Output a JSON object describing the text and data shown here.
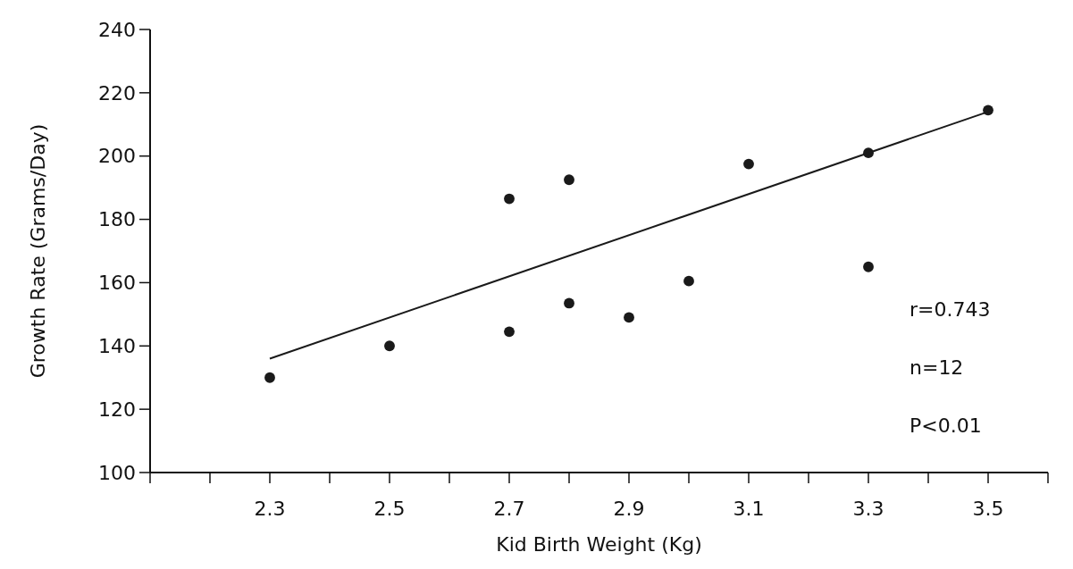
{
  "chart_data": {
    "type": "scatter",
    "xlabel": "Kid Birth Weight (Kg)",
    "ylabel": "Growth Rate (Grams/Day)",
    "xlim": [
      2.1,
      3.6
    ],
    "ylim": [
      100,
      240
    ],
    "xticks": [
      {
        "value": 2.1,
        "label": null
      },
      {
        "value": 2.2,
        "label": null
      },
      2.3,
      {
        "value": 2.4,
        "label": null
      },
      2.5,
      {
        "value": 2.6,
        "label": null
      },
      2.7,
      {
        "value": 2.8,
        "label": null
      },
      2.9,
      {
        "value": 3.0,
        "label": null
      },
      3.1,
      {
        "value": 3.2,
        "label": null
      },
      3.3,
      {
        "value": 3.4,
        "label": null
      },
      3.5,
      {
        "value": 3.6,
        "label": null
      }
    ],
    "yticks": [
      100,
      120,
      140,
      160,
      180,
      200,
      220,
      240
    ],
    "grid": false,
    "annotations": [
      "r=0.743",
      "n=12",
      "P<0.01"
    ],
    "series": [
      {
        "marker": "circle",
        "color": "#1a1a1a",
        "x": [
          2.3,
          2.5,
          2.7,
          2.7,
          2.8,
          2.8,
          2.9,
          3.0,
          3.1,
          3.3,
          3.3,
          3.5
        ],
        "values": [
          130,
          140,
          144.5,
          186.5,
          192.5,
          153.5,
          149,
          160.5,
          197.5,
          201,
          165,
          214.5
        ]
      },
      {
        "type": "line",
        "color": "#1a1a1a",
        "x": [
          2.3,
          3.5
        ],
        "values": [
          136,
          214
        ]
      }
    ]
  }
}
